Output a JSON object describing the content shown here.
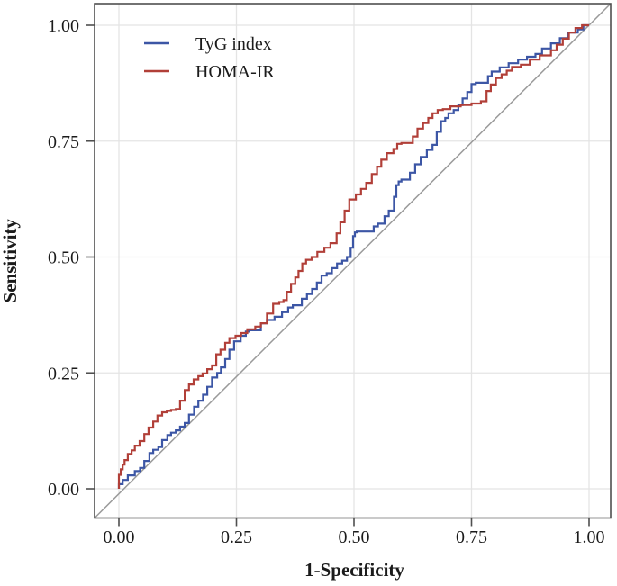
{
  "figure": {
    "background": "#ffffff",
    "panel_border_color": "#4f4f4f",
    "grid_color": "#e4e4e4",
    "diagonal_color": "#9a9a9a",
    "tick_color": "#4f4f4f",
    "text_color": "#1b1b1b"
  },
  "chart_data": {
    "type": "line",
    "subtype": "roc-step-curves",
    "title": "",
    "xlabel": "1-Specificity",
    "ylabel": "Sensitivity",
    "xlim": [
      0,
      1
    ],
    "ylim": [
      0,
      1
    ],
    "grid": true,
    "legend_position": "top-left-inside",
    "x_ticks": [
      {
        "value": 0,
        "label": "0.00"
      },
      {
        "value": 0.25,
        "label": "0.25"
      },
      {
        "value": 0.5,
        "label": "0.50"
      },
      {
        "value": 0.75,
        "label": "0.75"
      },
      {
        "value": 1,
        "label": "1.00"
      }
    ],
    "y_ticks": [
      {
        "value": 0,
        "label": "0.00"
      },
      {
        "value": 0.25,
        "label": "0.25"
      },
      {
        "value": 0.5,
        "label": "0.50"
      },
      {
        "value": 0.75,
        "label": "0.75"
      },
      {
        "value": 1,
        "label": "1.00"
      }
    ],
    "reference_line": {
      "from": [
        0,
        0
      ],
      "to": [
        1,
        1
      ]
    },
    "series": [
      {
        "name": "TyG index",
        "color": "#3c56a5",
        "points": [
          [
            0.0,
            0.0
          ],
          [
            0.008,
            0.01
          ],
          [
            0.019,
            0.019
          ],
          [
            0.034,
            0.029
          ],
          [
            0.045,
            0.038
          ],
          [
            0.054,
            0.045
          ],
          [
            0.065,
            0.06
          ],
          [
            0.073,
            0.077
          ],
          [
            0.084,
            0.084
          ],
          [
            0.092,
            0.09
          ],
          [
            0.103,
            0.105
          ],
          [
            0.111,
            0.116
          ],
          [
            0.121,
            0.121
          ],
          [
            0.13,
            0.126
          ],
          [
            0.14,
            0.134
          ],
          [
            0.149,
            0.142
          ],
          [
            0.16,
            0.16
          ],
          [
            0.169,
            0.177
          ],
          [
            0.179,
            0.19
          ],
          [
            0.188,
            0.203
          ],
          [
            0.198,
            0.22
          ],
          [
            0.209,
            0.24
          ],
          [
            0.217,
            0.25
          ],
          [
            0.226,
            0.262
          ],
          [
            0.235,
            0.28
          ],
          [
            0.245,
            0.3
          ],
          [
            0.259,
            0.318
          ],
          [
            0.27,
            0.33
          ],
          [
            0.277,
            0.339
          ],
          [
            0.302,
            0.342
          ],
          [
            0.315,
            0.357
          ],
          [
            0.331,
            0.364
          ],
          [
            0.347,
            0.371
          ],
          [
            0.36,
            0.381
          ],
          [
            0.37,
            0.391
          ],
          [
            0.389,
            0.396
          ],
          [
            0.4,
            0.41
          ],
          [
            0.411,
            0.42
          ],
          [
            0.421,
            0.431
          ],
          [
            0.431,
            0.445
          ],
          [
            0.442,
            0.46
          ],
          [
            0.453,
            0.465
          ],
          [
            0.464,
            0.476
          ],
          [
            0.475,
            0.486
          ],
          [
            0.485,
            0.492
          ],
          [
            0.493,
            0.5
          ],
          [
            0.498,
            0.52
          ],
          [
            0.502,
            0.545
          ],
          [
            0.506,
            0.553
          ],
          [
            0.542,
            0.555
          ],
          [
            0.551,
            0.566
          ],
          [
            0.565,
            0.572
          ],
          [
            0.574,
            0.588
          ],
          [
            0.585,
            0.6
          ],
          [
            0.59,
            0.63
          ],
          [
            0.595,
            0.655
          ],
          [
            0.601,
            0.663
          ],
          [
            0.619,
            0.667
          ],
          [
            0.63,
            0.682
          ],
          [
            0.642,
            0.7
          ],
          [
            0.655,
            0.716
          ],
          [
            0.667,
            0.731
          ],
          [
            0.676,
            0.742
          ],
          [
            0.685,
            0.77
          ],
          [
            0.694,
            0.793
          ],
          [
            0.701,
            0.8
          ],
          [
            0.712,
            0.81
          ],
          [
            0.722,
            0.817
          ],
          [
            0.731,
            0.828
          ],
          [
            0.741,
            0.842
          ],
          [
            0.75,
            0.856
          ],
          [
            0.759,
            0.873
          ],
          [
            0.785,
            0.876
          ],
          [
            0.793,
            0.89
          ],
          [
            0.81,
            0.9
          ],
          [
            0.829,
            0.909
          ],
          [
            0.849,
            0.918
          ],
          [
            0.868,
            0.926
          ],
          [
            0.886,
            0.932
          ],
          [
            0.9,
            0.938
          ],
          [
            0.919,
            0.95
          ],
          [
            0.938,
            0.961
          ],
          [
            0.956,
            0.972
          ],
          [
            0.976,
            0.984
          ],
          [
            0.988,
            0.991
          ],
          [
            1.0,
            1.0
          ]
        ]
      },
      {
        "name": "HOMA-IR",
        "color": "#b13f38",
        "points": [
          [
            0.0,
            0.0
          ],
          [
            0.0,
            0.02
          ],
          [
            0.004,
            0.03
          ],
          [
            0.008,
            0.042
          ],
          [
            0.012,
            0.052
          ],
          [
            0.019,
            0.062
          ],
          [
            0.027,
            0.075
          ],
          [
            0.034,
            0.083
          ],
          [
            0.044,
            0.093
          ],
          [
            0.054,
            0.103
          ],
          [
            0.063,
            0.118
          ],
          [
            0.073,
            0.132
          ],
          [
            0.082,
            0.145
          ],
          [
            0.092,
            0.158
          ],
          [
            0.102,
            0.165
          ],
          [
            0.111,
            0.168
          ],
          [
            0.121,
            0.17
          ],
          [
            0.13,
            0.172
          ],
          [
            0.14,
            0.19
          ],
          [
            0.149,
            0.213
          ],
          [
            0.159,
            0.225
          ],
          [
            0.169,
            0.236
          ],
          [
            0.178,
            0.243
          ],
          [
            0.188,
            0.249
          ],
          [
            0.198,
            0.258
          ],
          [
            0.207,
            0.266
          ],
          [
            0.216,
            0.29
          ],
          [
            0.226,
            0.3
          ],
          [
            0.235,
            0.315
          ],
          [
            0.248,
            0.325
          ],
          [
            0.26,
            0.33
          ],
          [
            0.273,
            0.336
          ],
          [
            0.29,
            0.344
          ],
          [
            0.302,
            0.35
          ],
          [
            0.315,
            0.357
          ],
          [
            0.328,
            0.378
          ],
          [
            0.341,
            0.399
          ],
          [
            0.35,
            0.403
          ],
          [
            0.357,
            0.407
          ],
          [
            0.366,
            0.425
          ],
          [
            0.375,
            0.442
          ],
          [
            0.382,
            0.456
          ],
          [
            0.39,
            0.47
          ],
          [
            0.398,
            0.486
          ],
          [
            0.41,
            0.494
          ],
          [
            0.422,
            0.5
          ],
          [
            0.437,
            0.511
          ],
          [
            0.45,
            0.52
          ],
          [
            0.463,
            0.53
          ],
          [
            0.471,
            0.551
          ],
          [
            0.48,
            0.575
          ],
          [
            0.49,
            0.6
          ],
          [
            0.504,
            0.624
          ],
          [
            0.515,
            0.635
          ],
          [
            0.526,
            0.647
          ],
          [
            0.538,
            0.66
          ],
          [
            0.549,
            0.679
          ],
          [
            0.558,
            0.695
          ],
          [
            0.57,
            0.71
          ],
          [
            0.584,
            0.724
          ],
          [
            0.592,
            0.733
          ],
          [
            0.601,
            0.744
          ],
          [
            0.625,
            0.746
          ],
          [
            0.635,
            0.76
          ],
          [
            0.647,
            0.777
          ],
          [
            0.658,
            0.789
          ],
          [
            0.667,
            0.8
          ],
          [
            0.678,
            0.81
          ],
          [
            0.689,
            0.817
          ],
          [
            0.705,
            0.819
          ],
          [
            0.727,
            0.825
          ],
          [
            0.75,
            0.828
          ],
          [
            0.77,
            0.831
          ],
          [
            0.782,
            0.836
          ],
          [
            0.791,
            0.858
          ],
          [
            0.802,
            0.872
          ],
          [
            0.814,
            0.886
          ],
          [
            0.836,
            0.902
          ],
          [
            0.855,
            0.91
          ],
          [
            0.874,
            0.915
          ],
          [
            0.895,
            0.926
          ],
          [
            0.919,
            0.935
          ],
          [
            0.931,
            0.946
          ],
          [
            0.944,
            0.958
          ],
          [
            0.957,
            0.971
          ],
          [
            0.971,
            0.984
          ],
          [
            0.985,
            0.994
          ],
          [
            1.0,
            1.0
          ]
        ]
      }
    ]
  },
  "legend": {
    "items": [
      {
        "label": "TyG index",
        "color": "#3c56a5"
      },
      {
        "label": "HOMA-IR",
        "color": "#b13f38"
      }
    ]
  }
}
